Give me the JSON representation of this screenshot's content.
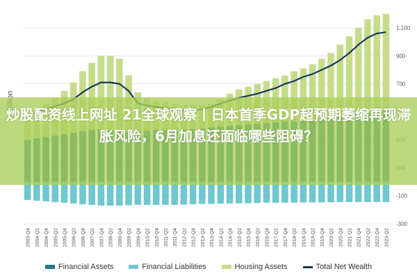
{
  "headline": "炒股配资线上网址 21全球观察丨日本首季GDP超预期萎缩再现滞胀风险，6月加息还面临哪些阻碍？",
  "chart_data": {
    "type": "bar",
    "ylabel": "€ Billion",
    "yticks": [
      -300,
      -100,
      100,
      300,
      500,
      700,
      900,
      1100
    ],
    "ytick_labels": [
      "-300",
      "-100",
      "100",
      "300",
      "500",
      "700",
      "900",
      "1,100"
    ],
    "ylim": [
      -300,
      1200
    ],
    "grid": true,
    "legend_position": "bottom",
    "categories": [
      "2003-Q4",
      "2004-Q2",
      "2004-Q4",
      "2005-Q2",
      "2005-Q4",
      "2006-Q2",
      "2006-Q4",
      "2007-Q2",
      "2007-Q4",
      "2008-Q2",
      "2008-Q4",
      "2009-Q2",
      "2009-Q4",
      "2010-Q2",
      "2010-Q4",
      "2011-Q2",
      "2011-Q4",
      "2012-Q2",
      "2012-Q4",
      "2013-Q2",
      "2013-Q4",
      "2014-Q2",
      "2014-Q4",
      "2015-Q2",
      "2015-Q4",
      "2016-Q2",
      "2016-Q4",
      "2017-Q2",
      "2017-Q4",
      "2018-Q2",
      "2018-Q4",
      "2019-Q2",
      "2019-Q4",
      "2020-Q2",
      "2020-Q4",
      "2021-Q2",
      "2021-Q4",
      "2022-Q2",
      "2022-Q4",
      "2023-Q2"
    ],
    "series": [
      {
        "name": "Financial Assets",
        "color": "#1f7a7e",
        "values": [
          300,
          310,
          320,
          330,
          340,
          350,
          360,
          370,
          375,
          370,
          360,
          355,
          360,
          365,
          370,
          370,
          365,
          370,
          375,
          380,
          390,
          395,
          400,
          405,
          410,
          415,
          420,
          425,
          430,
          430,
          435,
          440,
          450,
          455,
          465,
          475,
          485,
          495,
          500,
          510
        ]
      },
      {
        "name": "Financial Liabilities",
        "color": "#6fc7cf",
        "values": [
          -130,
          -135,
          -140,
          -145,
          -150,
          -155,
          -160,
          -165,
          -170,
          -170,
          -170,
          -168,
          -165,
          -165,
          -165,
          -165,
          -165,
          -163,
          -160,
          -158,
          -158,
          -156,
          -155,
          -154,
          -153,
          -152,
          -150,
          -150,
          -150,
          -149,
          -148,
          -147,
          -147,
          -146,
          -145,
          -145,
          -145,
          -145,
          -145,
          -145
        ]
      },
      {
        "name": "Housing Assets",
        "color": "#c6dc8a",
        "values": [
          490,
          520,
          560,
          600,
          650,
          710,
          790,
          850,
          900,
          900,
          880,
          760,
          640,
          600,
          580,
          570,
          560,
          550,
          550,
          550,
          560,
          590,
          630,
          660,
          680,
          700,
          720,
          740,
          760,
          790,
          810,
          840,
          880,
          920,
          980,
          1040,
          1100,
          1160,
          1190,
          1200
        ]
      },
      {
        "name": "Total Net Wealth",
        "color": "#14395a",
        "type": "line",
        "values": [
          480,
          500,
          520,
          540,
          560,
          590,
          640,
          680,
          710,
          710,
          700,
          650,
          560,
          545,
          535,
          528,
          520,
          510,
          510,
          520,
          535,
          560,
          580,
          600,
          615,
          630,
          650,
          670,
          700,
          720,
          750,
          770,
          800,
          830,
          870,
          920,
          980,
          1030,
          1060,
          1070
        ]
      }
    ]
  }
}
